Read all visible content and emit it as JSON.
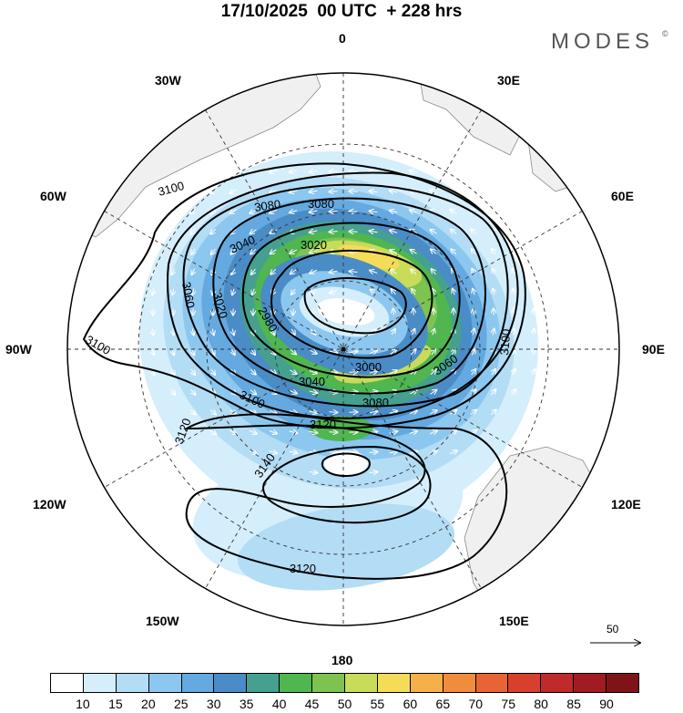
{
  "title": "17/10/2025  00 UTC  + 228 hrs",
  "brand": {
    "text": "MODES",
    "mark": "©"
  },
  "longitude_labels": {
    "lon_0": "0",
    "lon_30e": "30E",
    "lon_60e": "60E",
    "lon_90e": "90E",
    "lon_120e": "120E",
    "lon_150e": "150E",
    "lon_180": "180",
    "lon_150w": "150W",
    "lon_120w": "120W",
    "lon_90w": "90W",
    "lon_60w": "60W",
    "lon_30w": "30W"
  },
  "contour_labels": [
    {
      "text": "3100"
    },
    {
      "text": "3080"
    },
    {
      "text": "3080"
    },
    {
      "text": "3060"
    },
    {
      "text": "3040"
    },
    {
      "text": "3020"
    },
    {
      "text": "2980"
    },
    {
      "text": "3020"
    },
    {
      "text": "3100"
    },
    {
      "text": "3100"
    },
    {
      "text": "3060"
    },
    {
      "text": "3000"
    },
    {
      "text": "3040"
    },
    {
      "text": "3080"
    },
    {
      "text": "3100"
    },
    {
      "text": "3120"
    },
    {
      "text": "3120"
    },
    {
      "text": "3140"
    },
    {
      "text": "3120"
    }
  ],
  "reference_vector": {
    "label": "50"
  },
  "colorbar": {
    "labels": [
      "10",
      "15",
      "20",
      "25",
      "30",
      "35",
      "40",
      "45",
      "50",
      "55",
      "60",
      "65",
      "70",
      "75",
      "80",
      "85",
      "90"
    ],
    "colors": [
      "#ffffff",
      "#d4eefb",
      "#b3dcf5",
      "#8cc7ef",
      "#64a9df",
      "#4a8cc6",
      "#45a08f",
      "#4fb650",
      "#7ec350",
      "#c8dc5a",
      "#f5dc58",
      "#f5b04a",
      "#f08c3e",
      "#e86436",
      "#d8402e",
      "#c02a2a",
      "#a01c22",
      "#7e1418"
    ]
  }
}
